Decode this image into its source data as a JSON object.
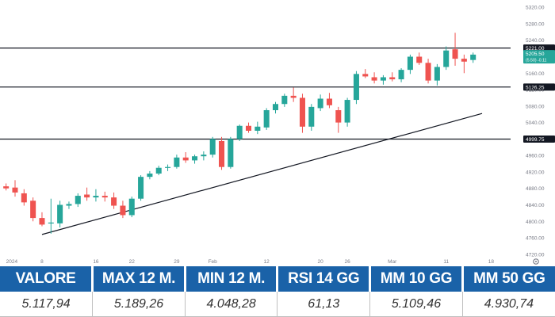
{
  "chart_data": {
    "type": "candlestick",
    "y_ticks": [
      4720,
      4760,
      4800,
      4840,
      4880,
      4920,
      4960,
      5000,
      5040,
      5080,
      5120,
      5160,
      5200,
      5240,
      5280,
      5320
    ],
    "ylim": [
      4710,
      5330
    ],
    "x_tick_labels": [
      "2024",
      "8",
      "16",
      "22",
      "29",
      "Feb",
      "12",
      "20",
      "26",
      "Mar",
      "11",
      "18"
    ],
    "x_tick_index": [
      0,
      4,
      10,
      14,
      19,
      23,
      29,
      35,
      38,
      43,
      49,
      54
    ],
    "x_index_range": [
      -0.5,
      56
    ],
    "levels": [
      {
        "value": "5221.00",
        "price": 5221
      },
      {
        "value": "5126.25",
        "price": 5126.25
      },
      {
        "value": "4999.75",
        "price": 4999.75
      }
    ],
    "trendline": {
      "from": {
        "index": 4,
        "price": 4768
      },
      "to": {
        "index": 53,
        "price": 5062
      }
    },
    "last_price": {
      "value": "5205.50",
      "change": "(5.50) -0.11",
      "price": 5205.5
    },
    "candles": [
      {
        "i": 0,
        "o": 4885,
        "h": 4892,
        "l": 4875,
        "c": 4880
      },
      {
        "i": 1,
        "o": 4882,
        "h": 4900,
        "l": 4860,
        "c": 4870
      },
      {
        "i": 2,
        "o": 4868,
        "h": 4878,
        "l": 4838,
        "c": 4846
      },
      {
        "i": 3,
        "o": 4850,
        "h": 4858,
        "l": 4800,
        "c": 4808
      },
      {
        "i": 4,
        "o": 4808,
        "h": 4822,
        "l": 4788,
        "c": 4792
      },
      {
        "i": 5,
        "o": 4795,
        "h": 4855,
        "l": 4770,
        "c": 4797
      },
      {
        "i": 6,
        "o": 4795,
        "h": 4850,
        "l": 4785,
        "c": 4840
      },
      {
        "i": 7,
        "o": 4838,
        "h": 4848,
        "l": 4830,
        "c": 4842
      },
      {
        "i": 8,
        "o": 4842,
        "h": 4868,
        "l": 4835,
        "c": 4862
      },
      {
        "i": 9,
        "o": 4865,
        "h": 4882,
        "l": 4850,
        "c": 4858
      },
      {
        "i": 10,
        "o": 4858,
        "h": 4878,
        "l": 4848,
        "c": 4862
      },
      {
        "i": 11,
        "o": 4862,
        "h": 4872,
        "l": 4848,
        "c": 4858
      },
      {
        "i": 12,
        "o": 4858,
        "h": 4870,
        "l": 4830,
        "c": 4838
      },
      {
        "i": 13,
        "o": 4838,
        "h": 4850,
        "l": 4808,
        "c": 4815
      },
      {
        "i": 14,
        "o": 4815,
        "h": 4860,
        "l": 4810,
        "c": 4855
      },
      {
        "i": 15,
        "o": 4855,
        "h": 4912,
        "l": 4850,
        "c": 4908
      },
      {
        "i": 16,
        "o": 4908,
        "h": 4922,
        "l": 4902,
        "c": 4916
      },
      {
        "i": 17,
        "o": 4916,
        "h": 4935,
        "l": 4912,
        "c": 4930
      },
      {
        "i": 18,
        "o": 4930,
        "h": 4938,
        "l": 4922,
        "c": 4932
      },
      {
        "i": 19,
        "o": 4932,
        "h": 4962,
        "l": 4928,
        "c": 4955
      },
      {
        "i": 20,
        "o": 4955,
        "h": 4968,
        "l": 4942,
        "c": 4948
      },
      {
        "i": 21,
        "o": 4948,
        "h": 4962,
        "l": 4940,
        "c": 4958
      },
      {
        "i": 22,
        "o": 4958,
        "h": 4970,
        "l": 4948,
        "c": 4962
      },
      {
        "i": 23,
        "o": 4962,
        "h": 5005,
        "l": 4955,
        "c": 5000
      },
      {
        "i": 24,
        "o": 4995,
        "h": 5005,
        "l": 4925,
        "c": 4932
      },
      {
        "i": 25,
        "o": 4932,
        "h": 5005,
        "l": 4928,
        "c": 5000
      },
      {
        "i": 26,
        "o": 5000,
        "h": 5035,
        "l": 4995,
        "c": 5032
      },
      {
        "i": 27,
        "o": 5032,
        "h": 5040,
        "l": 5015,
        "c": 5020
      },
      {
        "i": 28,
        "o": 5020,
        "h": 5042,
        "l": 5012,
        "c": 5030
      },
      {
        "i": 29,
        "o": 5028,
        "h": 5075,
        "l": 5022,
        "c": 5070
      },
      {
        "i": 30,
        "o": 5070,
        "h": 5090,
        "l": 5062,
        "c": 5085
      },
      {
        "i": 31,
        "o": 5085,
        "h": 5110,
        "l": 5078,
        "c": 5105
      },
      {
        "i": 32,
        "o": 5105,
        "h": 5125,
        "l": 5090,
        "c": 5100
      },
      {
        "i": 33,
        "o": 5100,
        "h": 5110,
        "l": 5015,
        "c": 5030
      },
      {
        "i": 34,
        "o": 5030,
        "h": 5085,
        "l": 5020,
        "c": 5078
      },
      {
        "i": 35,
        "o": 5075,
        "h": 5108,
        "l": 5068,
        "c": 5098
      },
      {
        "i": 36,
        "o": 5098,
        "h": 5112,
        "l": 5075,
        "c": 5082
      },
      {
        "i": 37,
        "o": 5070,
        "h": 5078,
        "l": 5015,
        "c": 5040
      },
      {
        "i": 38,
        "o": 5040,
        "h": 5100,
        "l": 5030,
        "c": 5095
      },
      {
        "i": 39,
        "o": 5095,
        "h": 5165,
        "l": 5085,
        "c": 5158
      },
      {
        "i": 40,
        "o": 5158,
        "h": 5170,
        "l": 5148,
        "c": 5152
      },
      {
        "i": 41,
        "o": 5150,
        "h": 5162,
        "l": 5135,
        "c": 5142
      },
      {
        "i": 42,
        "o": 5142,
        "h": 5155,
        "l": 5132,
        "c": 5150
      },
      {
        "i": 43,
        "o": 5150,
        "h": 5162,
        "l": 5140,
        "c": 5145
      },
      {
        "i": 44,
        "o": 5145,
        "h": 5172,
        "l": 5138,
        "c": 5168
      },
      {
        "i": 45,
        "o": 5168,
        "h": 5205,
        "l": 5158,
        "c": 5200
      },
      {
        "i": 46,
        "o": 5200,
        "h": 5210,
        "l": 5180,
        "c": 5185
      },
      {
        "i": 47,
        "o": 5185,
        "h": 5195,
        "l": 5135,
        "c": 5142
      },
      {
        "i": 48,
        "o": 5142,
        "h": 5182,
        "l": 5130,
        "c": 5175
      },
      {
        "i": 49,
        "o": 5175,
        "h": 5225,
        "l": 5168,
        "c": 5215
      },
      {
        "i": 50,
        "o": 5218,
        "h": 5258,
        "l": 5178,
        "c": 5195
      },
      {
        "i": 51,
        "o": 5195,
        "h": 5205,
        "l": 5160,
        "c": 5188
      },
      {
        "i": 52,
        "o": 5192,
        "h": 5210,
        "l": 5185,
        "c": 5205
      }
    ]
  },
  "stats": {
    "headers": [
      "VALORE",
      "MAX 12 M.",
      "MIN 12 M.",
      "RSI 14 GG",
      "MM 10 GG",
      "MM 50 GG"
    ],
    "values": [
      "5.117,94",
      "5.189,26",
      "4.048,28",
      "61,13",
      "5.109,46",
      "4.930,74"
    ]
  },
  "colors": {
    "up": "#26a69a",
    "down": "#ef5350",
    "header_bg": "#1a62a8",
    "axis_text": "#787b86",
    "level_line": "#131722"
  },
  "icons": {
    "axis_settings": "settings-gear-icon"
  }
}
